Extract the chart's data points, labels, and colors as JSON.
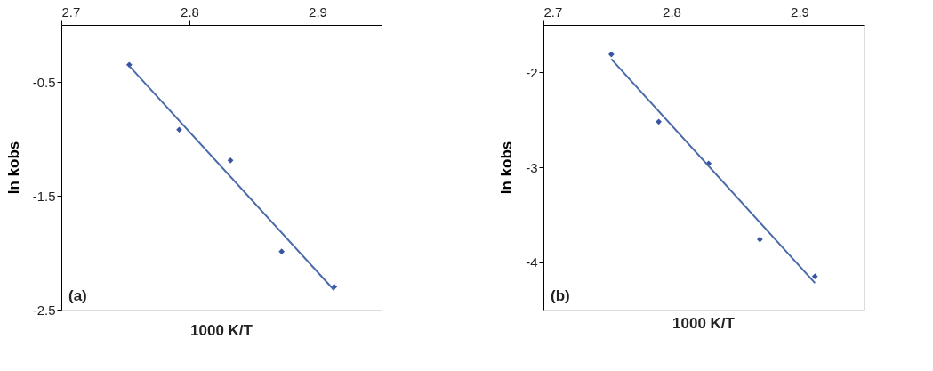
{
  "chart_data": [
    {
      "type": "scatter",
      "xlabel": "1000 K/T",
      "ylabel": "ln kobs",
      "xlim": [
        2.7,
        2.95
      ],
      "xticks": [
        2.7,
        2.8,
        2.9
      ],
      "ylim": [
        -2.5,
        0
      ],
      "yticks": [
        -0.5,
        -1.5,
        -2.5
      ],
      "grid": false,
      "annotations": [
        "(a)"
      ],
      "series": [
        {
          "marker": "diamond",
          "color": "#3a55a0",
          "x": [
            2.753,
            2.792,
            2.832,
            2.872,
            2.913
          ],
          "values": [
            -0.35,
            -0.92,
            -1.19,
            -1.99,
            -2.3
          ]
        },
        {
          "type": "line",
          "line_style": "solid",
          "color": "#4a6aaa",
          "x": [
            2.753,
            2.913
          ],
          "values": [
            -0.36,
            -2.33
          ]
        }
      ]
    },
    {
      "type": "scatter",
      "xlabel": "1000 K/T",
      "ylabel": "ln kobs",
      "xlim": [
        2.7,
        2.95
      ],
      "xticks": [
        2.7,
        2.8,
        2.9
      ],
      "ylim": [
        -4.5,
        -1.5
      ],
      "yticks": [
        -2,
        -3,
        -4
      ],
      "grid": false,
      "annotations": [
        "(b)"
      ],
      "series": [
        {
          "marker": "diamond",
          "color": "#3a55a0",
          "x": [
            2.753,
            2.79,
            2.829,
            2.869,
            2.912
          ],
          "values": [
            -1.81,
            -2.52,
            -2.96,
            -3.76,
            -4.15
          ]
        },
        {
          "type": "line",
          "line_style": "solid",
          "color": "#4a6aaa",
          "x": [
            2.753,
            2.912
          ],
          "values": [
            -1.86,
            -4.22
          ]
        }
      ]
    }
  ]
}
